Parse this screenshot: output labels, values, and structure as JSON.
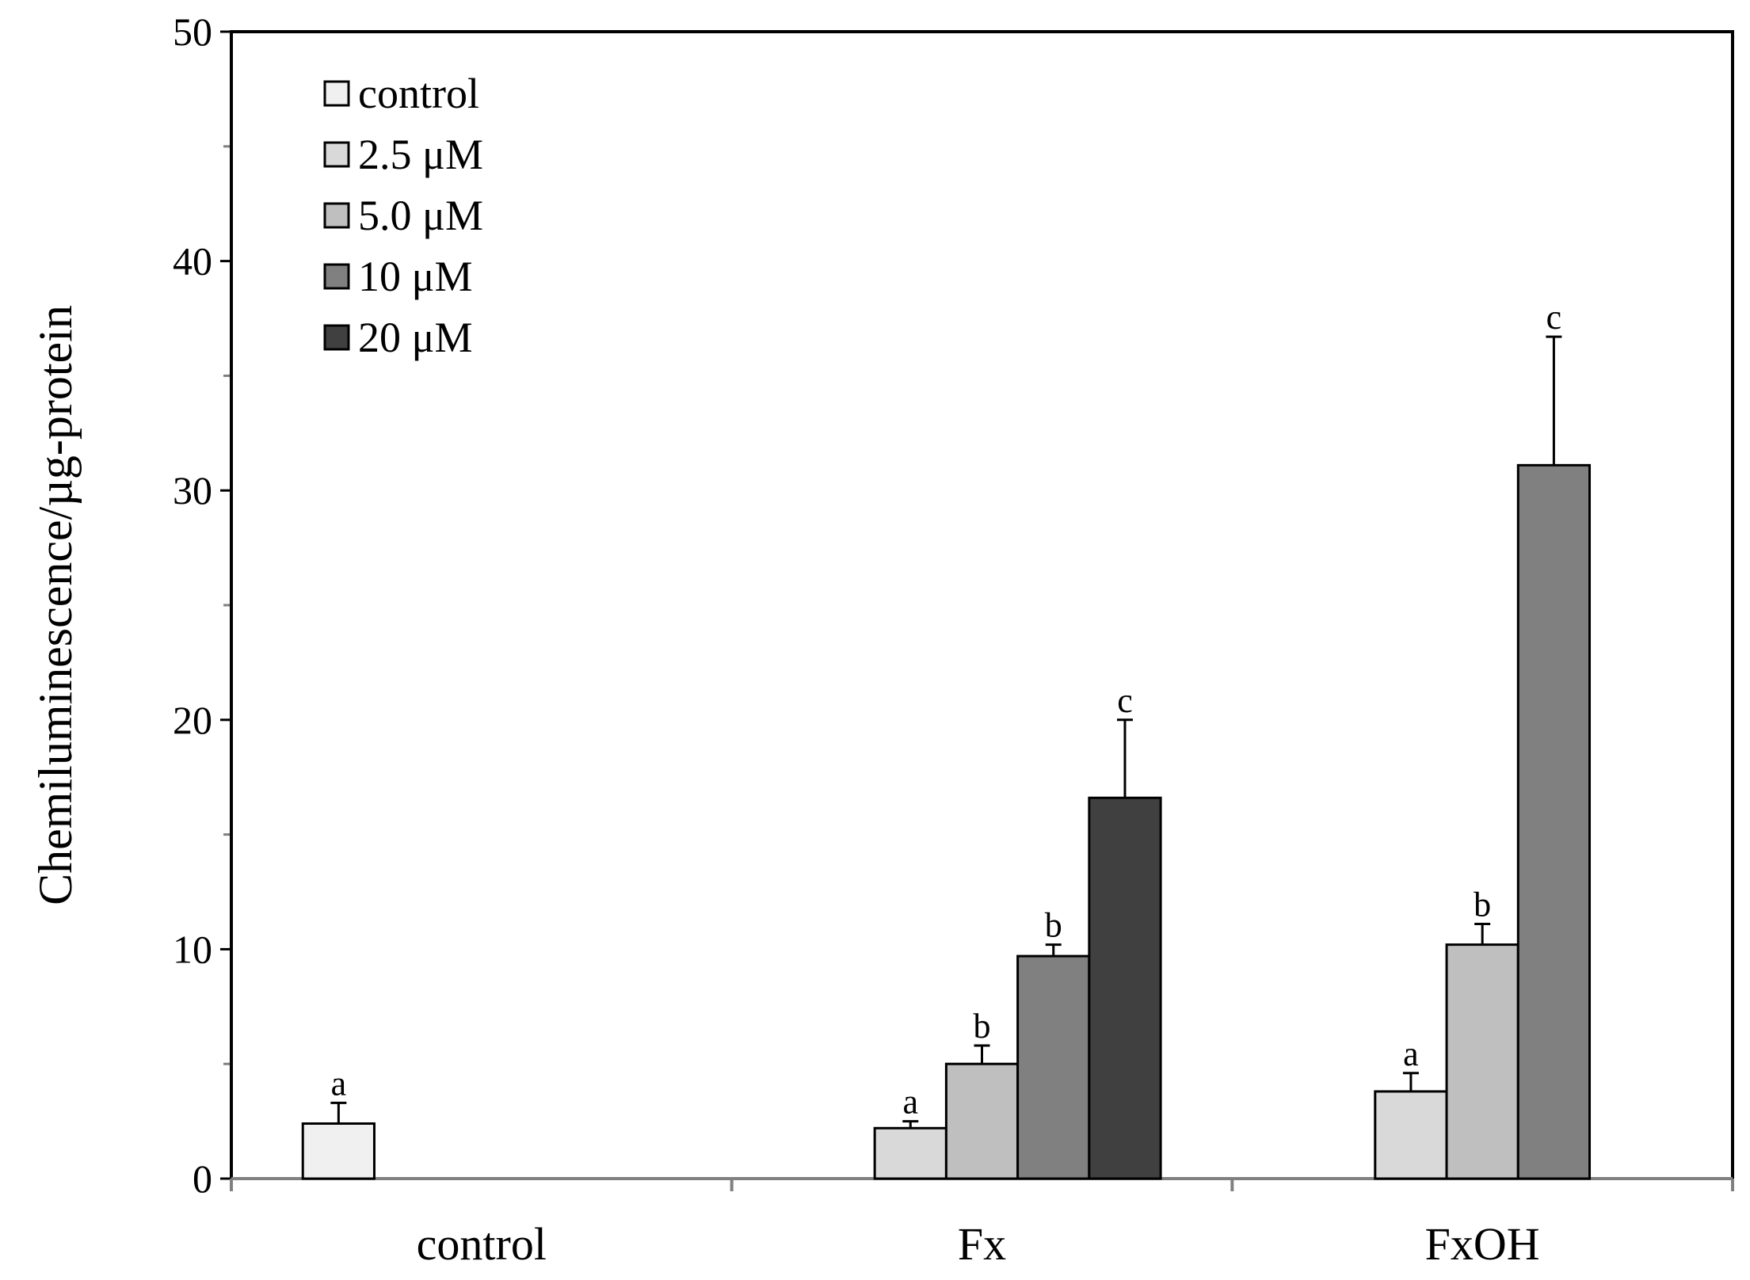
{
  "chart_data": {
    "type": "bar",
    "title": "",
    "xlabel": "",
    "ylabel": "Chemiluminescence/µg-protein",
    "ylim": [
      0,
      50
    ],
    "yticks": [
      0,
      10,
      20,
      30,
      40,
      50
    ],
    "categories": [
      "control",
      "Fx",
      "FxOH"
    ],
    "legend_position": "top-left",
    "series": [
      {
        "name": "control",
        "color": "#f0f0f0",
        "values": [
          2.4,
          null,
          null
        ],
        "errors": [
          0.9,
          null,
          null
        ],
        "sig": [
          "a",
          null,
          null
        ]
      },
      {
        "name": "2.5 μM",
        "color": "#d9d9d9",
        "values": [
          null,
          2.2,
          3.8
        ],
        "errors": [
          null,
          0.3,
          0.8
        ],
        "sig": [
          null,
          "a",
          "a"
        ]
      },
      {
        "name": "5.0 μM",
        "color": "#bfbfbf",
        "values": [
          null,
          5.0,
          10.2
        ],
        "errors": [
          null,
          0.8,
          0.9
        ],
        "sig": [
          null,
          "b",
          "b"
        ]
      },
      {
        "name": "10 μM",
        "color": "#808080",
        "values": [
          null,
          9.7,
          31.1
        ],
        "errors": [
          null,
          0.5,
          5.6
        ],
        "sig": [
          null,
          "b",
          "c"
        ]
      },
      {
        "name": "20 μM",
        "color": "#404040",
        "values": [
          null,
          16.6,
          null
        ],
        "errors": [
          null,
          3.4,
          null
        ],
        "sig": [
          null,
          "c",
          null
        ]
      }
    ]
  }
}
